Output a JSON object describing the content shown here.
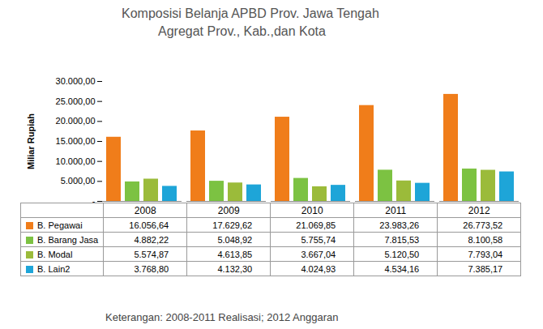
{
  "chart_data": {
    "type": "bar",
    "title": "Komposisi Belanja  APBD Prov. Jawa Tengah",
    "subtitle": "Agregat Prov., Kab.,dan Kota",
    "y_label": "Miliar Rupiah",
    "caption": "Keterangan: 2008-2011 Realisasi; 2012 Anggaran",
    "categories": [
      "2008",
      "2009",
      "2010",
      "2011",
      "2012"
    ],
    "series": [
      {
        "name": "B. Pegawai",
        "color": "#f07d1a",
        "values": [
          16056.64,
          17629.62,
          21069.85,
          23983.26,
          26773.52
        ],
        "value_labels": [
          "16.056,64",
          "17.629,62",
          "21.069,85",
          "23.983,26",
          "26.773,52"
        ]
      },
      {
        "name": "B. Barang Jasa",
        "color": "#7cc242",
        "values": [
          4882.22,
          5048.92,
          5755.74,
          7815.53,
          8100.58
        ],
        "value_labels": [
          "4.882,22",
          "5.048,92",
          "5.755,74",
          "7.815,53",
          "8.100,58"
        ]
      },
      {
        "name": "B. Modal",
        "color": "#9bbb3a",
        "values": [
          5574.87,
          4613.85,
          3667.04,
          5120.5,
          7793.04
        ],
        "value_labels": [
          "5.574,87",
          "4.613,85",
          "3.667,04",
          "5.120,50",
          "7.793,04"
        ]
      },
      {
        "name": "B. Lain2",
        "color": "#1ea5d8",
        "values": [
          3768.8,
          4132.3,
          4024.93,
          4534.16,
          7385.17
        ],
        "value_labels": [
          "3.768,80",
          "4.132,30",
          "4.024,93",
          "4.534,16",
          "7.385,17"
        ]
      }
    ],
    "ylim": [
      0,
      30000
    ],
    "yticks": [
      {
        "value": 0,
        "label": "-"
      },
      {
        "value": 5000,
        "label": "5.000,00"
      },
      {
        "value": 10000,
        "label": "10.000,00"
      },
      {
        "value": 15000,
        "label": "15.000,00"
      },
      {
        "value": 20000,
        "label": "20.000,00"
      },
      {
        "value": 25000,
        "label": "25.000,00"
      },
      {
        "value": 30000,
        "label": "30.000,00"
      }
    ],
    "grid": false,
    "legend": "bottom"
  }
}
